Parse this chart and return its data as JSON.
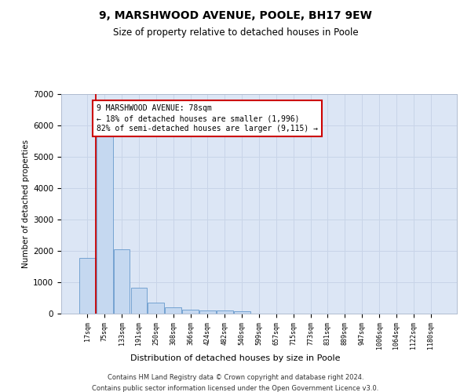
{
  "title1": "9, MARSHWOOD AVENUE, POOLE, BH17 9EW",
  "title2": "Size of property relative to detached houses in Poole",
  "xlabel": "Distribution of detached houses by size in Poole",
  "ylabel": "Number of detached properties",
  "bar_labels": [
    "17sqm",
    "75sqm",
    "133sqm",
    "191sqm",
    "250sqm",
    "308sqm",
    "366sqm",
    "424sqm",
    "482sqm",
    "540sqm",
    "599sqm",
    "657sqm",
    "715sqm",
    "773sqm",
    "831sqm",
    "889sqm",
    "947sqm",
    "1006sqm",
    "1064sqm",
    "1122sqm",
    "1180sqm"
  ],
  "bar_values": [
    1780,
    5800,
    2060,
    820,
    350,
    195,
    120,
    110,
    95,
    65,
    0,
    0,
    0,
    0,
    0,
    0,
    0,
    0,
    0,
    0,
    0
  ],
  "bar_color": "#c5d8f0",
  "bar_edge_color": "#6699cc",
  "vline_color": "#cc0000",
  "annotation_text": "9 MARSHWOOD AVENUE: 78sqm\n← 18% of detached houses are smaller (1,996)\n82% of semi-detached houses are larger (9,115) →",
  "annotation_box_color": "#ffffff",
  "annotation_box_edge": "#cc0000",
  "ylim": [
    0,
    7000
  ],
  "yticks": [
    0,
    1000,
    2000,
    3000,
    4000,
    5000,
    6000,
    7000
  ],
  "grid_color": "#c8d4e8",
  "bg_color": "#dce6f5",
  "footer_line1": "Contains HM Land Registry data © Crown copyright and database right 2024.",
  "footer_line2": "Contains public sector information licensed under the Open Government Licence v3.0."
}
